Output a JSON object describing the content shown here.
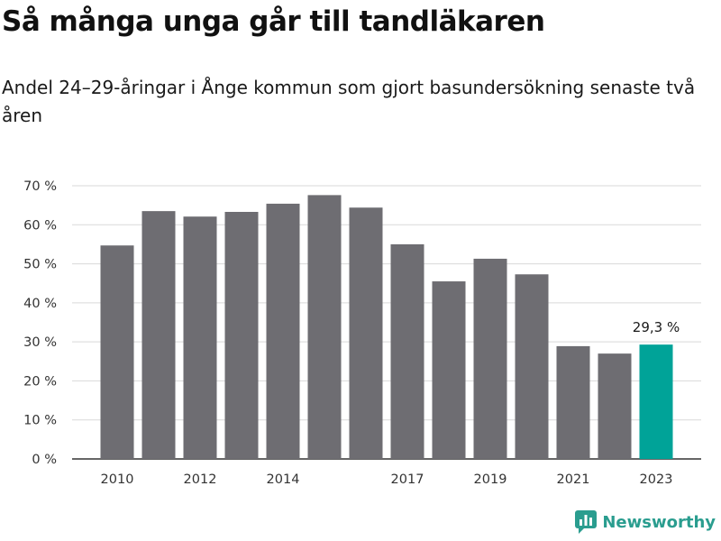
{
  "title": "Så många unga går till tandläkaren",
  "subtitle": "Andel 24–29-åringar i Ånge kommun som gjort basundersökning senaste två åren",
  "brand": {
    "name": "Newsworthy",
    "color": "#2a9d8f"
  },
  "colors": {
    "bar": "#6e6d72",
    "highlight": "#00a398",
    "grid": "#d9d9d9",
    "axis": "#333333"
  },
  "chart_data": {
    "type": "bar",
    "categories": [
      "2010",
      "2011",
      "2012",
      "2013",
      "2014",
      "2015",
      "2016",
      "2017",
      "2018",
      "2019",
      "2020",
      "2021",
      "2022",
      "2023"
    ],
    "x_tick_labels": [
      "2010",
      "",
      "2012",
      "",
      "2014",
      "",
      "",
      "2017",
      "",
      "2019",
      "",
      "2021",
      "",
      "2023"
    ],
    "values": [
      54.7,
      63.5,
      62.1,
      63.3,
      65.4,
      67.6,
      64.4,
      55.0,
      45.5,
      51.3,
      47.3,
      28.9,
      27.0,
      29.3
    ],
    "highlight_index": 13,
    "highlight_label": "29,3 %",
    "ylim": [
      0,
      70
    ],
    "y_ticks": [
      0,
      10,
      20,
      30,
      40,
      50,
      60,
      70
    ],
    "y_tick_labels": [
      "0 %",
      "10 %",
      "20 %",
      "30 %",
      "40 %",
      "50 %",
      "60 %",
      "70 %"
    ],
    "grid": true,
    "legend": "none"
  }
}
